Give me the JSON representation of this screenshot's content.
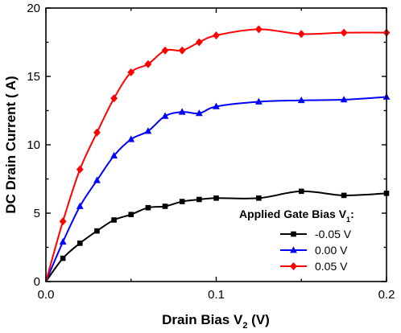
{
  "chart_data": {
    "type": "line",
    "xlabel": "Drain Bias V",
    "xlabel_sub": "2",
    "xlabel_unit": " (V)",
    "ylabel": "DC Drain Current (  A)",
    "xlim": [
      0,
      0.2
    ],
    "ylim": [
      0,
      20
    ],
    "xticks": [
      "0.0",
      "0.1",
      "0.2"
    ],
    "yticks": [
      "0",
      "5",
      "10",
      "15",
      "20"
    ],
    "grid": false,
    "legend": {
      "title": "Applied Gate Bias V",
      "title_sub": "1",
      "title_suffix": ":",
      "placement": "bottom-right"
    },
    "series": [
      {
        "name": "-0.05 V",
        "color": "#000000",
        "marker": "square",
        "x": [
          0,
          0.01,
          0.02,
          0.03,
          0.04,
          0.05,
          0.06,
          0.07,
          0.08,
          0.09,
          0.1,
          0.125,
          0.15,
          0.175,
          0.2
        ],
        "values": [
          0,
          1.7,
          2.8,
          3.7,
          4.5,
          4.9,
          5.4,
          5.5,
          5.85,
          6.0,
          6.1,
          6.1,
          6.6,
          6.3,
          6.45
        ]
      },
      {
        "name": "0.00 V",
        "color": "#0000ff",
        "marker": "triangle",
        "x": [
          0,
          0.01,
          0.02,
          0.03,
          0.04,
          0.05,
          0.06,
          0.07,
          0.08,
          0.09,
          0.1,
          0.125,
          0.15,
          0.175,
          0.2
        ],
        "values": [
          0,
          2.9,
          5.5,
          7.4,
          9.2,
          10.4,
          11.0,
          12.1,
          12.4,
          12.3,
          12.8,
          13.15,
          13.25,
          13.3,
          13.5
        ]
      },
      {
        "name": "0.05 V",
        "color": "#ff0000",
        "marker": "diamond",
        "x": [
          0,
          0.01,
          0.02,
          0.03,
          0.04,
          0.05,
          0.06,
          0.07,
          0.08,
          0.09,
          0.1,
          0.125,
          0.15,
          0.175,
          0.2
        ],
        "values": [
          0,
          4.4,
          8.2,
          10.9,
          13.4,
          15.3,
          15.9,
          16.9,
          16.9,
          17.5,
          18.0,
          18.45,
          18.1,
          18.2,
          18.2
        ]
      }
    ]
  }
}
